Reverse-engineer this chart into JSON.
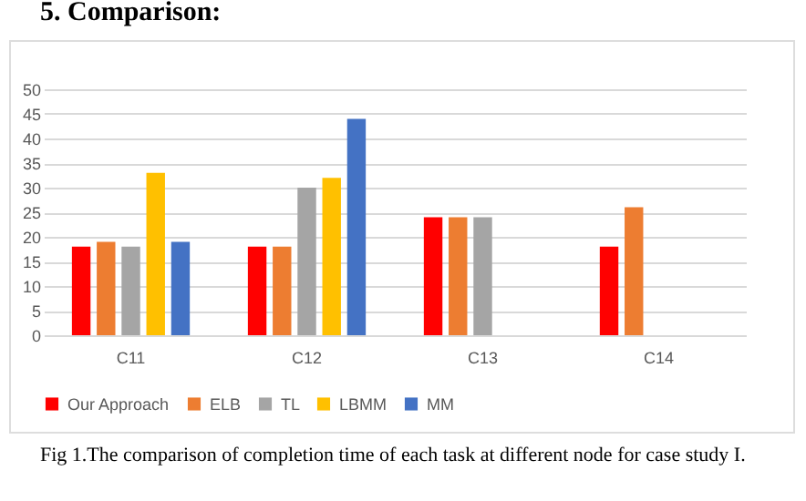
{
  "chart_data": {
    "type": "bar",
    "title": "5. Comparison:",
    "categories": [
      "C11",
      "C12",
      "C13",
      "C14"
    ],
    "series": [
      {
        "name": "Our Approach",
        "color": "#ff0000",
        "values": [
          18,
          18,
          24,
          18
        ]
      },
      {
        "name": "ELB",
        "color": "#ed7d31",
        "values": [
          19,
          18,
          24,
          26
        ]
      },
      {
        "name": "TL",
        "color": "#a5a5a5",
        "values": [
          18,
          30,
          24,
          null
        ]
      },
      {
        "name": "LBMM",
        "color": "#ffc000",
        "values": [
          33,
          32,
          null,
          null
        ]
      },
      {
        "name": "MM",
        "color": "#4472c4",
        "values": [
          19,
          44,
          null,
          null
        ]
      }
    ],
    "ylim": [
      0,
      50
    ],
    "yticks": [
      0,
      5,
      10,
      15,
      20,
      25,
      30,
      35,
      40,
      45,
      50
    ],
    "grid": "y",
    "legend": "bottom",
    "annotations": [
      "Fig 1.The comparison of completion time of each task at different node for case study I."
    ]
  }
}
